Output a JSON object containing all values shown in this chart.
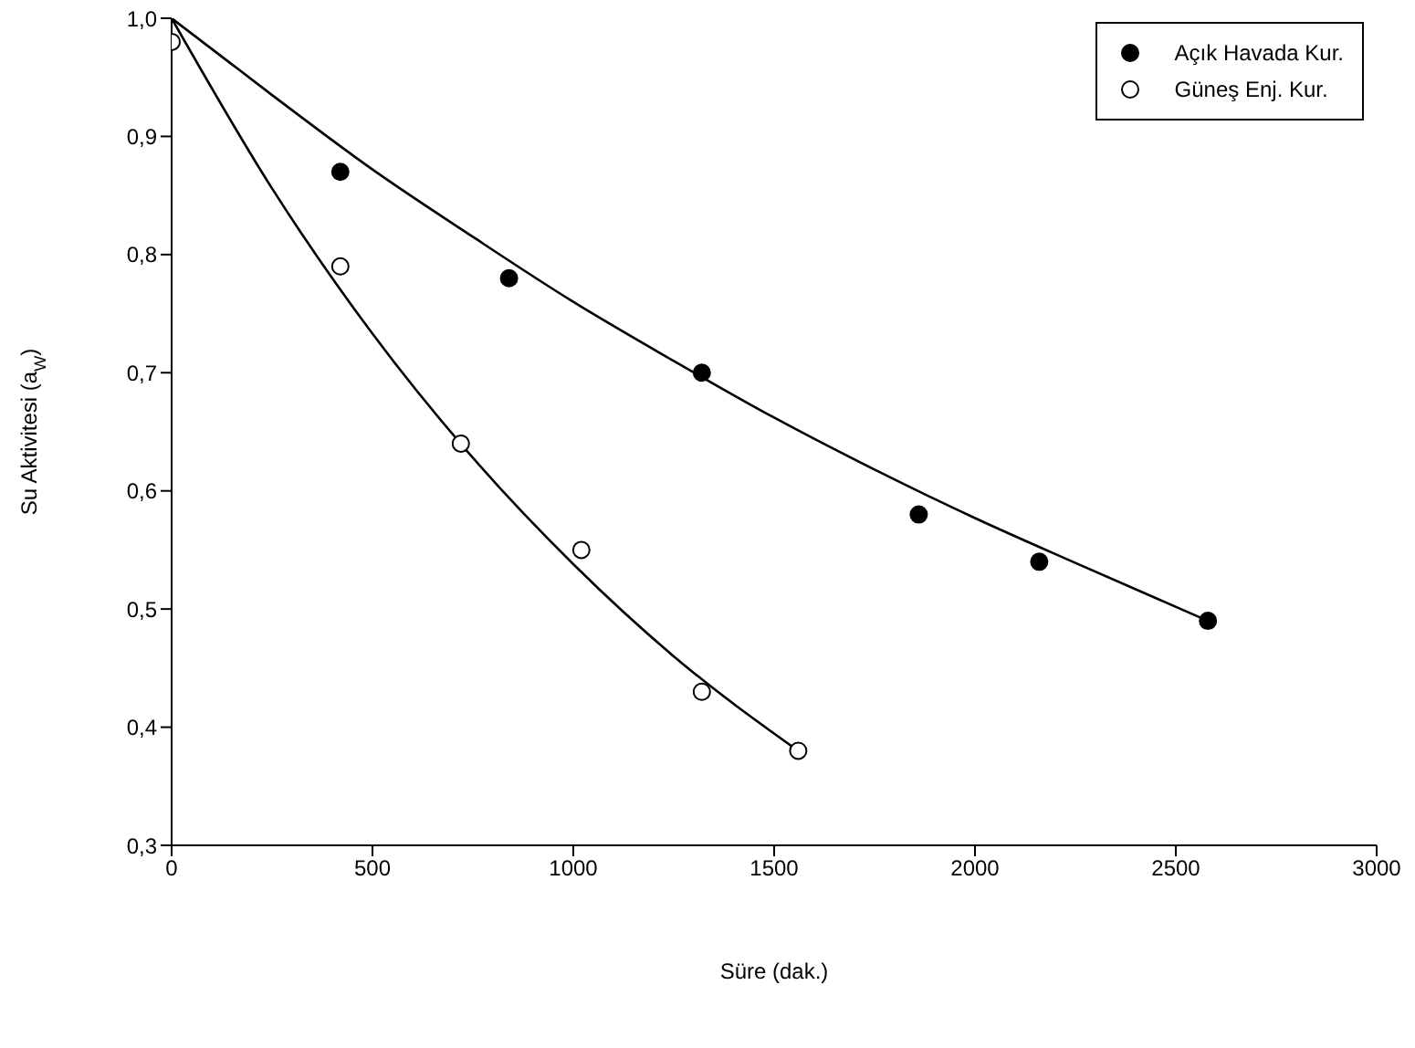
{
  "chart_data": {
    "type": "scatter",
    "xlabel": "Süre (dak.)",
    "ylabel": "Su Aktivitesi (a$_{W}$)",
    "xlim": [
      0,
      3000
    ],
    "xticks": [
      0,
      500,
      1000,
      1500,
      2000,
      2500,
      3000
    ],
    "ylim": [
      0.3,
      1.0
    ],
    "yticks": [
      {
        "value": 0.3,
        "label": "0,3"
      },
      {
        "value": 0.4,
        "label": "0,4"
      },
      {
        "value": 0.5,
        "label": "0,5"
      },
      {
        "value": 0.6,
        "label": "0,6"
      },
      {
        "value": 0.7,
        "label": "0,7"
      },
      {
        "value": 0.8,
        "label": "0,8"
      },
      {
        "value": 0.9,
        "label": "0,9"
      },
      {
        "value": 1.0,
        "label": "1,0"
      }
    ],
    "legend": "top right",
    "marker": "circle",
    "grid": false,
    "series": [
      {
        "type": "line",
        "color": "#000000",
        "marker": "none",
        "x": [
          0,
          250,
          500,
          750,
          1000,
          1250,
          1500,
          1750,
          2000,
          2250,
          2580
        ],
        "values": [
          1.0,
          0.935,
          0.872,
          0.815,
          0.76,
          0.71,
          0.662,
          0.618,
          0.577,
          0.539,
          0.49
        ]
      },
      {
        "type": "line",
        "color": "#000000",
        "marker": "none",
        "x": [
          0,
          250,
          500,
          750,
          1000,
          1250,
          1560
        ],
        "values": [
          1.0,
          0.856,
          0.733,
          0.628,
          0.538,
          0.46,
          0.38
        ]
      },
      {
        "name": "Açık Havada Kur.",
        "color": "#000000",
        "x": [
          420,
          840,
          1320,
          1860,
          2160,
          2580
        ],
        "values": [
          0.87,
          0.78,
          0.7,
          0.58,
          0.54,
          0.49
        ]
      },
      {
        "name": "Güneş Enj. Kur.",
        "color": "#ffffff",
        "x": [
          0,
          420,
          720,
          1020,
          1320,
          1560
        ],
        "values": [
          0.98,
          0.79,
          0.64,
          0.55,
          0.43,
          0.38
        ]
      }
    ]
  }
}
